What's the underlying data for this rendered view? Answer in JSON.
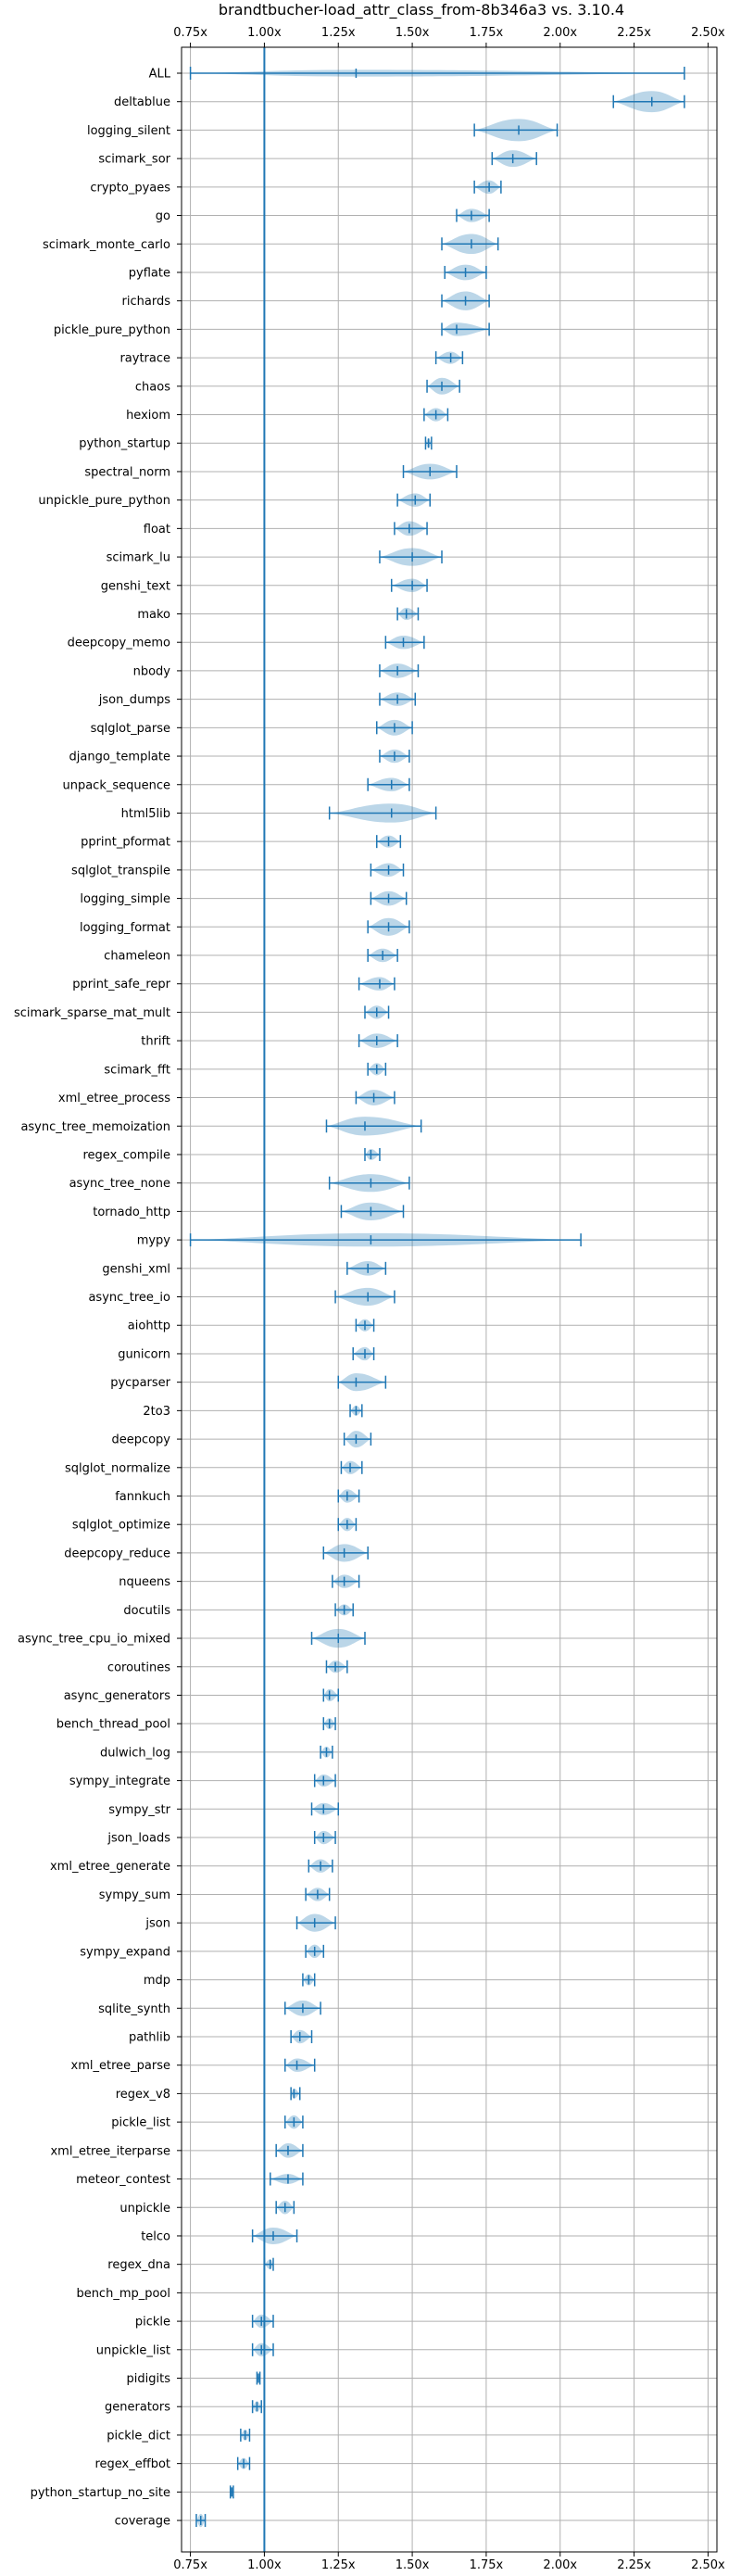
{
  "chart_data": {
    "type": "violin",
    "title": "brandtbucher-load_attr_class_from-8b346a3 vs. 3.10.4",
    "xlim": [
      0.72,
      2.53
    ],
    "xticks": [
      0.75,
      1.0,
      1.25,
      1.5,
      1.75,
      2.0,
      2.25,
      2.5
    ],
    "xtick_labels": [
      "0.75x",
      "1.00x",
      "1.25x",
      "1.50x",
      "1.75x",
      "2.00x",
      "2.25x",
      "2.50x"
    ],
    "baseline": 1.0,
    "grid": true,
    "benchmarks": [
      {
        "name": "ALL",
        "min": 0.75,
        "max": 2.42,
        "median": 1.31,
        "width": 0.3
      },
      {
        "name": "deltablue",
        "min": 2.18,
        "max": 2.42,
        "median": 2.31,
        "width": 0.95
      },
      {
        "name": "logging_silent",
        "min": 1.71,
        "max": 1.99,
        "median": 1.86,
        "width": 1.0
      },
      {
        "name": "scimark_sor",
        "min": 1.77,
        "max": 1.92,
        "median": 1.84,
        "width": 0.75
      },
      {
        "name": "crypto_pyaes",
        "min": 1.71,
        "max": 1.8,
        "median": 1.76,
        "width": 0.6
      },
      {
        "name": "go",
        "min": 1.65,
        "max": 1.76,
        "median": 1.7,
        "width": 0.6
      },
      {
        "name": "scimark_monte_carlo",
        "min": 1.6,
        "max": 1.79,
        "median": 1.7,
        "width": 0.9
      },
      {
        "name": "pyflate",
        "min": 1.61,
        "max": 1.75,
        "median": 1.68,
        "width": 0.7
      },
      {
        "name": "richards",
        "min": 1.6,
        "max": 1.76,
        "median": 1.68,
        "width": 0.85
      },
      {
        "name": "pickle_pure_python",
        "min": 1.6,
        "max": 1.76,
        "median": 1.65,
        "width": 0.6
      },
      {
        "name": "raytrace",
        "min": 1.58,
        "max": 1.67,
        "median": 1.63,
        "width": 0.55
      },
      {
        "name": "chaos",
        "min": 1.55,
        "max": 1.66,
        "median": 1.6,
        "width": 0.75
      },
      {
        "name": "hexiom",
        "min": 1.54,
        "max": 1.62,
        "median": 1.58,
        "width": 0.6
      },
      {
        "name": "python_startup",
        "min": 1.545,
        "max": 1.565,
        "median": 1.555,
        "width": 0.45
      },
      {
        "name": "spectral_norm",
        "min": 1.47,
        "max": 1.65,
        "median": 1.56,
        "width": 0.7
      },
      {
        "name": "unpickle_pure_python",
        "min": 1.45,
        "max": 1.56,
        "median": 1.51,
        "width": 0.6
      },
      {
        "name": "float",
        "min": 1.44,
        "max": 1.55,
        "median": 1.49,
        "width": 0.65
      },
      {
        "name": "scimark_lu",
        "min": 1.39,
        "max": 1.6,
        "median": 1.5,
        "width": 0.8
      },
      {
        "name": "genshi_text",
        "min": 1.43,
        "max": 1.55,
        "median": 1.5,
        "width": 0.6
      },
      {
        "name": "mako",
        "min": 1.45,
        "max": 1.52,
        "median": 1.48,
        "width": 0.55
      },
      {
        "name": "deepcopy_memo",
        "min": 1.41,
        "max": 1.54,
        "median": 1.47,
        "width": 0.6
      },
      {
        "name": "nbody",
        "min": 1.39,
        "max": 1.52,
        "median": 1.45,
        "width": 0.65
      },
      {
        "name": "json_dumps",
        "min": 1.39,
        "max": 1.51,
        "median": 1.45,
        "width": 0.6
      },
      {
        "name": "sqlglot_parse",
        "min": 1.38,
        "max": 1.5,
        "median": 1.44,
        "width": 0.7
      },
      {
        "name": "django_template",
        "min": 1.39,
        "max": 1.49,
        "median": 1.44,
        "width": 0.6
      },
      {
        "name": "unpack_sequence",
        "min": 1.35,
        "max": 1.49,
        "median": 1.43,
        "width": 0.6
      },
      {
        "name": "html5lib",
        "min": 1.22,
        "max": 1.58,
        "median": 1.43,
        "width": 0.85
      },
      {
        "name": "pprint_pformat",
        "min": 1.38,
        "max": 1.46,
        "median": 1.42,
        "width": 0.55
      },
      {
        "name": "sqlglot_transpile",
        "min": 1.36,
        "max": 1.47,
        "median": 1.42,
        "width": 0.6
      },
      {
        "name": "logging_simple",
        "min": 1.36,
        "max": 1.48,
        "median": 1.42,
        "width": 0.65
      },
      {
        "name": "logging_format",
        "min": 1.35,
        "max": 1.49,
        "median": 1.42,
        "width": 0.8
      },
      {
        "name": "chameleon",
        "min": 1.35,
        "max": 1.45,
        "median": 1.4,
        "width": 0.6
      },
      {
        "name": "pprint_safe_repr",
        "min": 1.32,
        "max": 1.44,
        "median": 1.39,
        "width": 0.6
      },
      {
        "name": "scimark_sparse_mat_mult",
        "min": 1.34,
        "max": 1.42,
        "median": 1.38,
        "width": 0.6
      },
      {
        "name": "thrift",
        "min": 1.32,
        "max": 1.45,
        "median": 1.38,
        "width": 0.65
      },
      {
        "name": "scimark_fft",
        "min": 1.35,
        "max": 1.41,
        "median": 1.38,
        "width": 0.55
      },
      {
        "name": "xml_etree_process",
        "min": 1.31,
        "max": 1.44,
        "median": 1.37,
        "width": 0.7
      },
      {
        "name": "async_tree_memoization",
        "min": 1.21,
        "max": 1.53,
        "median": 1.34,
        "width": 0.85
      },
      {
        "name": "regex_compile",
        "min": 1.34,
        "max": 1.39,
        "median": 1.36,
        "width": 0.5
      },
      {
        "name": "async_tree_none",
        "min": 1.22,
        "max": 1.49,
        "median": 1.36,
        "width": 0.8
      },
      {
        "name": "tornado_http",
        "min": 1.26,
        "max": 1.47,
        "median": 1.36,
        "width": 0.8
      },
      {
        "name": "mypy",
        "min": 0.75,
        "max": 2.07,
        "median": 1.36,
        "width": 0.6
      },
      {
        "name": "genshi_xml",
        "min": 1.28,
        "max": 1.41,
        "median": 1.35,
        "width": 0.65
      },
      {
        "name": "async_tree_io",
        "min": 1.24,
        "max": 1.44,
        "median": 1.35,
        "width": 0.8
      },
      {
        "name": "aiohttp",
        "min": 1.31,
        "max": 1.37,
        "median": 1.34,
        "width": 0.55
      },
      {
        "name": "gunicorn",
        "min": 1.3,
        "max": 1.37,
        "median": 1.34,
        "width": 0.6
      },
      {
        "name": "pycparser",
        "min": 1.25,
        "max": 1.41,
        "median": 1.31,
        "width": 0.8
      },
      {
        "name": "2to3",
        "min": 1.29,
        "max": 1.33,
        "median": 1.31,
        "width": 0.45
      },
      {
        "name": "deepcopy",
        "min": 1.27,
        "max": 1.36,
        "median": 1.31,
        "width": 0.75
      },
      {
        "name": "sqlglot_normalize",
        "min": 1.26,
        "max": 1.33,
        "median": 1.29,
        "width": 0.6
      },
      {
        "name": "fannkuch",
        "min": 1.25,
        "max": 1.32,
        "median": 1.28,
        "width": 0.6
      },
      {
        "name": "sqlglot_optimize",
        "min": 1.25,
        "max": 1.31,
        "median": 1.28,
        "width": 0.6
      },
      {
        "name": "deepcopy_reduce",
        "min": 1.2,
        "max": 1.35,
        "median": 1.27,
        "width": 0.8
      },
      {
        "name": "nqueens",
        "min": 1.23,
        "max": 1.32,
        "median": 1.27,
        "width": 0.6
      },
      {
        "name": "docutils",
        "min": 1.24,
        "max": 1.3,
        "median": 1.27,
        "width": 0.5
      },
      {
        "name": "async_tree_cpu_io_mixed",
        "min": 1.16,
        "max": 1.34,
        "median": 1.25,
        "width": 0.85
      },
      {
        "name": "coroutines",
        "min": 1.21,
        "max": 1.28,
        "median": 1.24,
        "width": 0.55
      },
      {
        "name": "async_generators",
        "min": 1.2,
        "max": 1.25,
        "median": 1.22,
        "width": 0.55
      },
      {
        "name": "bench_thread_pool",
        "min": 1.2,
        "max": 1.24,
        "median": 1.22,
        "width": 0.5
      },
      {
        "name": "dulwich_log",
        "min": 1.19,
        "max": 1.23,
        "median": 1.21,
        "width": 0.5
      },
      {
        "name": "sympy_integrate",
        "min": 1.17,
        "max": 1.24,
        "median": 1.2,
        "width": 0.55
      },
      {
        "name": "sympy_str",
        "min": 1.16,
        "max": 1.25,
        "median": 1.2,
        "width": 0.55
      },
      {
        "name": "json_loads",
        "min": 1.17,
        "max": 1.24,
        "median": 1.2,
        "width": 0.6
      },
      {
        "name": "xml_etree_generate",
        "min": 1.15,
        "max": 1.23,
        "median": 1.19,
        "width": 0.6
      },
      {
        "name": "sympy_sum",
        "min": 1.14,
        "max": 1.22,
        "median": 1.18,
        "width": 0.6
      },
      {
        "name": "json",
        "min": 1.11,
        "max": 1.24,
        "median": 1.17,
        "width": 0.8
      },
      {
        "name": "sympy_expand",
        "min": 1.14,
        "max": 1.2,
        "median": 1.17,
        "width": 0.6
      },
      {
        "name": "mdp",
        "min": 1.13,
        "max": 1.17,
        "median": 1.15,
        "width": 0.5
      },
      {
        "name": "sqlite_synth",
        "min": 1.07,
        "max": 1.19,
        "median": 1.13,
        "width": 0.7
      },
      {
        "name": "pathlib",
        "min": 1.09,
        "max": 1.16,
        "median": 1.12,
        "width": 0.6
      },
      {
        "name": "xml_etree_parse",
        "min": 1.07,
        "max": 1.17,
        "median": 1.11,
        "width": 0.6
      },
      {
        "name": "regex_v8",
        "min": 1.09,
        "max": 1.12,
        "median": 1.1,
        "width": 0.45
      },
      {
        "name": "pickle_list",
        "min": 1.07,
        "max": 1.13,
        "median": 1.1,
        "width": 0.6
      },
      {
        "name": "xml_etree_iterparse",
        "min": 1.04,
        "max": 1.13,
        "median": 1.08,
        "width": 0.65
      },
      {
        "name": "meteor_contest",
        "min": 1.02,
        "max": 1.13,
        "median": 1.08,
        "width": 0.45
      },
      {
        "name": "unpickle",
        "min": 1.04,
        "max": 1.1,
        "median": 1.07,
        "width": 0.6
      },
      {
        "name": "telco",
        "min": 0.96,
        "max": 1.11,
        "median": 1.03,
        "width": 0.75
      },
      {
        "name": "regex_dna",
        "min": 1.0,
        "max": 1.03,
        "median": 1.02,
        "width": 0.45
      },
      {
        "name": "bench_mp_pool",
        "min": 1.0,
        "max": 1.0,
        "median": 1.0,
        "width": 0.0
      },
      {
        "name": "pickle",
        "min": 0.96,
        "max": 1.03,
        "median": 0.99,
        "width": 0.6
      },
      {
        "name": "unpickle_list",
        "min": 0.96,
        "max": 1.03,
        "median": 0.99,
        "width": 0.6
      },
      {
        "name": "pidigits",
        "min": 0.975,
        "max": 0.985,
        "median": 0.98,
        "width": 0.4
      },
      {
        "name": "generators",
        "min": 0.96,
        "max": 0.99,
        "median": 0.975,
        "width": 0.5
      },
      {
        "name": "pickle_dict",
        "min": 0.92,
        "max": 0.95,
        "median": 0.935,
        "width": 0.5
      },
      {
        "name": "regex_effbot",
        "min": 0.91,
        "max": 0.95,
        "median": 0.93,
        "width": 0.5
      },
      {
        "name": "python_startup_no_site",
        "min": 0.885,
        "max": 0.895,
        "median": 0.89,
        "width": 0.4
      },
      {
        "name": "coverage",
        "min": 0.77,
        "max": 0.8,
        "median": 0.785,
        "width": 0.6
      }
    ]
  }
}
